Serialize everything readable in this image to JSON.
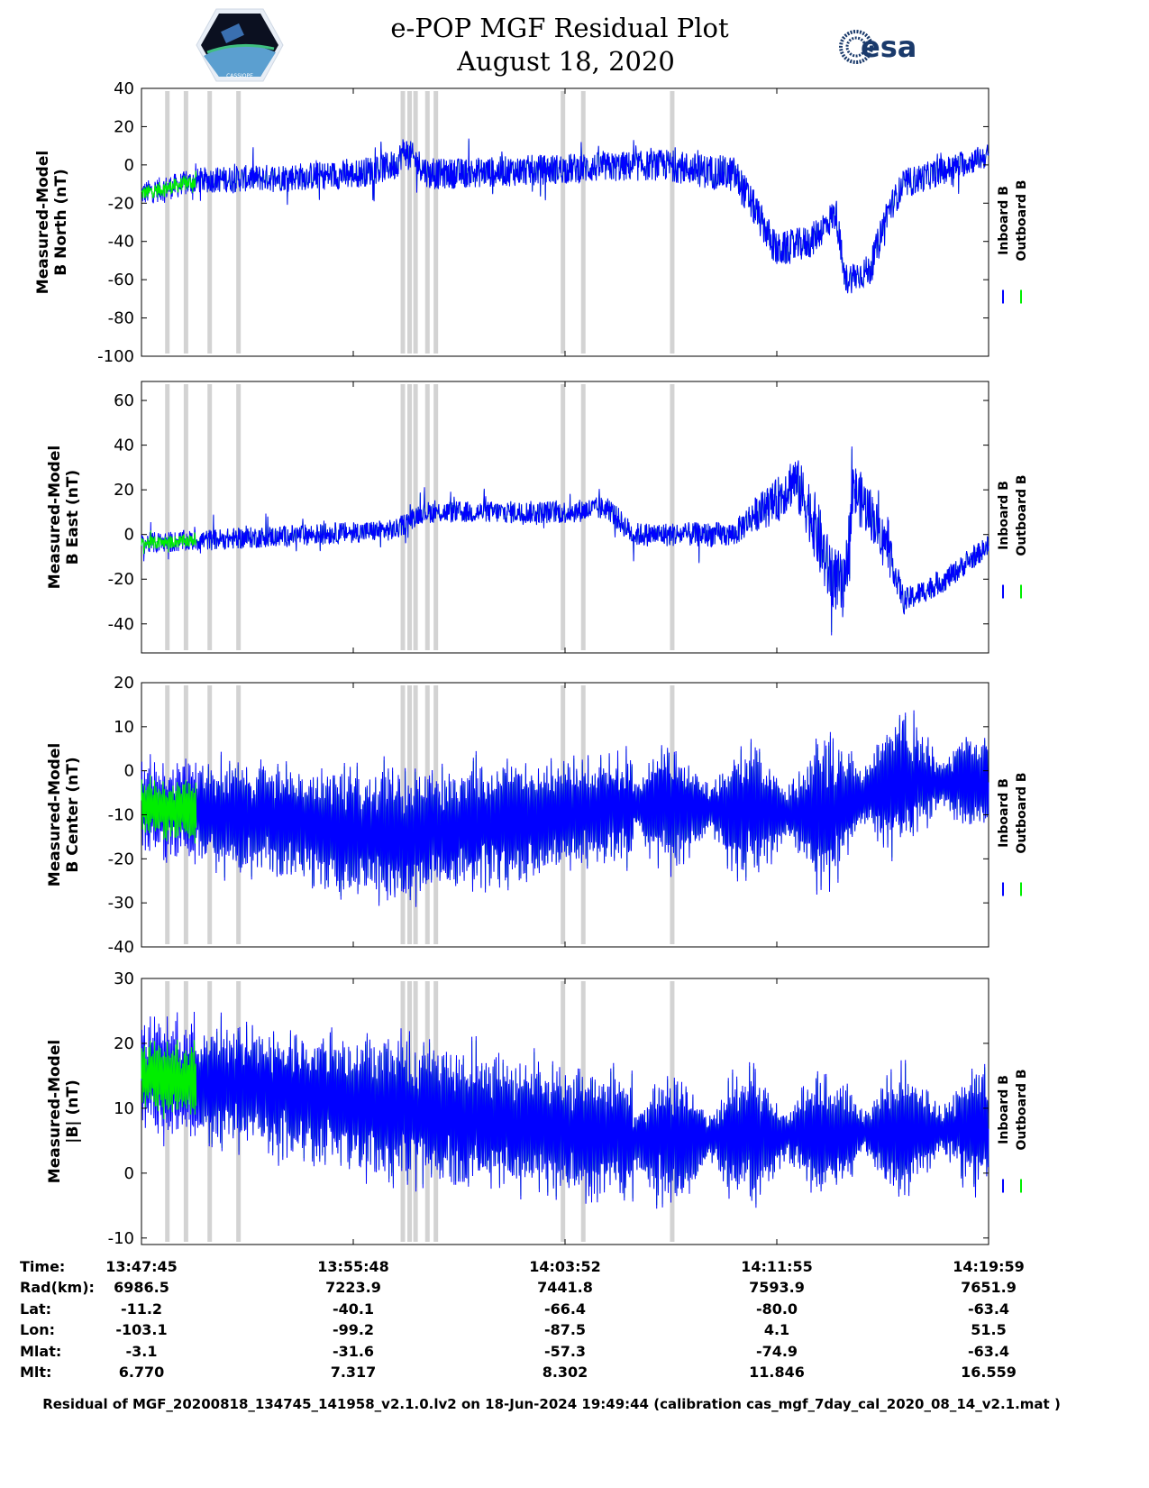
{
  "header": {
    "title_line1": "e-POP MGF Residual Plot",
    "title_line2": "August 18, 2020",
    "left_logo_text": "CASSIOPE",
    "right_logo_text": "esa"
  },
  "legend": {
    "inboard": "Inboard B",
    "outboard": "Outboard B"
  },
  "colors": {
    "inboard": "#0000ff",
    "outboard": "#00ee00",
    "gap_band": "#d3d3d3"
  },
  "chart_data": [
    {
      "type": "line",
      "ylabel": [
        "Measured-Model",
        "B North (nT)"
      ],
      "ylim": [
        -100,
        40
      ],
      "yticks": [
        -100,
        -80,
        -60,
        -40,
        -20,
        0,
        20,
        40
      ],
      "xlim_fraction": [
        0,
        1
      ],
      "mean_profile": {
        "f": [
          0,
          0.07,
          0.25,
          0.3,
          0.31,
          0.34,
          0.5,
          0.62,
          0.66,
          0.7,
          0.72,
          0.75,
          0.79,
          0.82,
          0.83,
          0.86,
          0.88,
          0.9,
          1.0
        ],
        "v": [
          -15,
          -8,
          -5,
          0,
          8,
          -5,
          -2,
          0,
          -3,
          -5,
          -20,
          -45,
          -40,
          -25,
          -60,
          -55,
          -25,
          -10,
          5
        ]
      },
      "amplitude_profile": {
        "f": [
          0,
          0.3,
          0.6,
          0.7,
          0.9,
          1
        ],
        "v": [
          8,
          10,
          10,
          12,
          10,
          8
        ]
      },
      "oscillation_cycles": 0
    },
    {
      "type": "line",
      "ylabel": [
        "Measured-Model",
        "B East (nT)"
      ],
      "ylim": [
        -53,
        68.5
      ],
      "yticks": [
        -40,
        -20,
        0,
        20,
        40,
        60
      ],
      "mean_profile": {
        "f": [
          0,
          0.3,
          0.33,
          0.5,
          0.55,
          0.58,
          0.7,
          0.72,
          0.75,
          0.77,
          0.79,
          0.81,
          0.83,
          0.84,
          0.86,
          0.88,
          0.9,
          0.95,
          1.0
        ],
        "v": [
          -4,
          2,
          10,
          10,
          12,
          0,
          0,
          8,
          15,
          25,
          10,
          -15,
          -25,
          20,
          10,
          -5,
          -30,
          -20,
          -5
        ]
      },
      "amplitude_profile": {
        "f": [
          0,
          0.3,
          0.7,
          0.77,
          0.8,
          0.86,
          0.9,
          1
        ],
        "v": [
          6,
          6,
          7,
          15,
          20,
          15,
          7,
          6
        ]
      },
      "oscillation_cycles": 0
    },
    {
      "type": "line",
      "ylabel": [
        "Measured-Model",
        "B Center (nT)"
      ],
      "ylim": [
        -40,
        20
      ],
      "yticks": [
        -40,
        -30,
        -20,
        -10,
        0,
        10,
        20
      ],
      "mean_profile": {
        "f": [
          0,
          0.3,
          0.5,
          0.6,
          0.8,
          0.85,
          0.9,
          1
        ],
        "v": [
          -8,
          -15,
          -10,
          -8,
          -10,
          -6,
          -2,
          -3
        ]
      },
      "amplitude_profile": {
        "f": [
          0,
          0.3,
          0.5,
          0.6,
          0.85,
          1
        ],
        "v": [
          10,
          14,
          12,
          12,
          14,
          10
        ]
      },
      "oscillation_cycles": 260
    },
    {
      "type": "line",
      "ylabel": [
        "Measured-Model",
        "|B| (nT)"
      ],
      "ylim": [
        -11,
        30
      ],
      "yticks": [
        -10,
        0,
        10,
        20,
        30
      ],
      "mean_profile": {
        "f": [
          0,
          0.3,
          0.6,
          1
        ],
        "v": [
          15,
          10,
          5,
          7
        ]
      },
      "amplitude_profile": {
        "f": [
          0,
          0.3,
          0.6,
          1
        ],
        "v": [
          8,
          10,
          9,
          8
        ]
      },
      "oscillation_cycles": 260
    }
  ],
  "gap_band_fractions": [
    0.03,
    0.052,
    0.08,
    0.114,
    0.308,
    0.316,
    0.323,
    0.337,
    0.347,
    0.497,
    0.521,
    0.626
  ],
  "table": {
    "labels": [
      "Time:",
      "Rad(km):",
      "Lat:",
      "Lon:",
      "Mlat:",
      "Mlt:"
    ],
    "columns": [
      [
        "13:47:45",
        "6986.5",
        "-11.2",
        "-103.1",
        "-3.1",
        "6.770"
      ],
      [
        "13:55:48",
        "7223.9",
        "-40.1",
        "-99.2",
        "-31.6",
        "7.317"
      ],
      [
        "14:03:52",
        "7441.8",
        "-66.4",
        "-87.5",
        "-57.3",
        "8.302"
      ],
      [
        "14:11:55",
        "7593.9",
        "-80.0",
        "4.1",
        "-74.9",
        "11.846"
      ],
      [
        "14:19:59",
        "7651.9",
        "-63.4",
        "51.5",
        "-63.4",
        "16.559"
      ]
    ]
  },
  "footer": "Residual of MGF_20200818_134745_141958_v2.1.0.lv2 on 18-Jun-2024 19:49:44 (calibration cas_mgf_7day_cal_2020_08_14_v2.1.mat )"
}
